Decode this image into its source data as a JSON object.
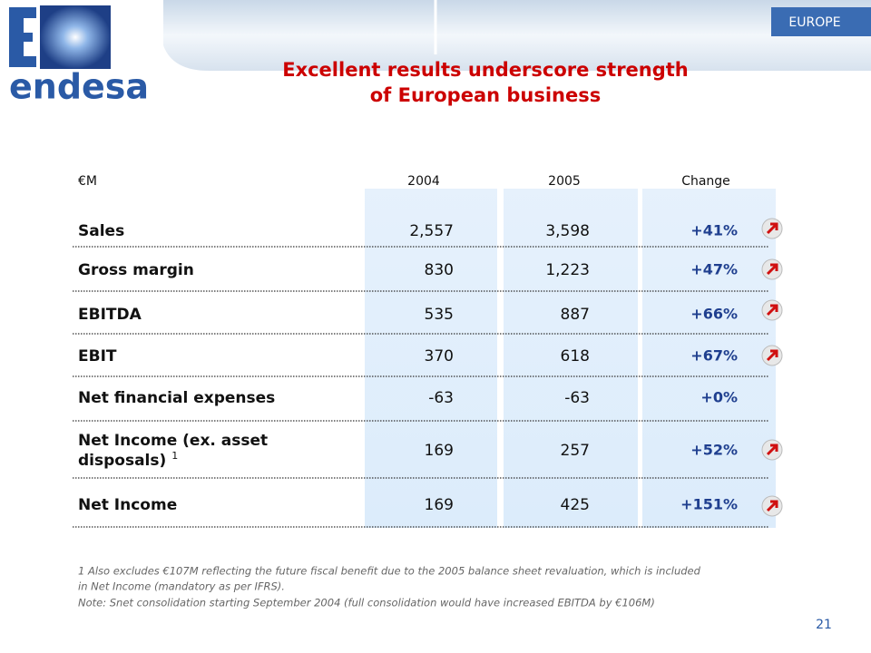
{
  "header": {
    "logo": "endesa",
    "region": "EUROPE"
  },
  "title": [
    "Excellent results underscore strength",
    "of European business"
  ],
  "table": {
    "columns": [
      "€M",
      "2004",
      "2005",
      "Change"
    ],
    "rows": [
      {
        "label": [
          "Sales"
        ],
        "values": [
          "2,557",
          "3,598",
          "+41%"
        ]
      },
      {
        "label": [
          "Gross margin"
        ],
        "values": [
          "830",
          "1,223",
          "+47%"
        ]
      },
      {
        "label": [
          "EBITDA"
        ],
        "values": [
          "535",
          "887",
          "+66%"
        ]
      },
      {
        "label": [
          "EBIT"
        ],
        "values": [
          "370",
          "618",
          "+67%"
        ]
      },
      {
        "label": [
          "Net financial expenses"
        ],
        "values": [
          "-63",
          "-63",
          "+0%"
        ]
      },
      {
        "label": [
          "Net Income (ex. asset",
          "disposals)"
        ],
        "note": "1",
        "values": [
          "169",
          "257",
          "+52%"
        ]
      },
      {
        "label": [
          "Net Income"
        ],
        "values": [
          "169",
          "425",
          "+151%"
        ]
      }
    ]
  },
  "footnotes": [
    "1 Also excludes €107M reflecting the future fiscal benefit due to the 2005 balance sheet revaluation, which is included",
    "in Net Income (mandatory as per IFRS).",
    "Note: Snet consolidation starting September 2004 (full consolidation would have increased EBITDA by €106M)"
  ],
  "page_number": "21"
}
